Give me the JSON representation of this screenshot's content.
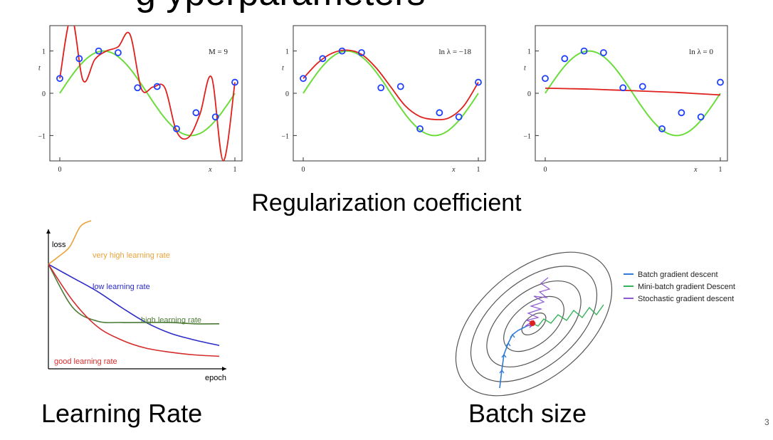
{
  "slide": {
    "title_fragment": "g          yperparameters",
    "regularization_caption": "Regularization coefficient",
    "lr_caption": "Learning Rate",
    "bs_caption": "Batch size",
    "page_number": "3"
  },
  "colors": {
    "data_points": "#1f3fff",
    "fit": "#e0201c",
    "truth": "#6cdc3c",
    "batch": "#2f7bd8",
    "minibatch": "#36b35a",
    "stochastic": "#8e5ad0"
  },
  "chart_data": [
    {
      "type": "line",
      "ylabel": "t",
      "xlabel": "x",
      "xlim": [
        0,
        1
      ],
      "ylim": [
        -1.6,
        1.6
      ],
      "x_ticks": [
        "0",
        "1"
      ],
      "y_ticks": [
        "1",
        "0",
        "−1"
      ],
      "annotation": "M = 9",
      "points_x": [
        0,
        0.111,
        0.222,
        0.333,
        0.444,
        0.556,
        0.667,
        0.778,
        0.889,
        1
      ],
      "points_t": [
        0.35,
        0.82,
        1.0,
        0.96,
        0.13,
        0.16,
        -0.84,
        -0.46,
        -0.56,
        0.26
      ],
      "fit_y": [
        0.35,
        1.8,
        0.3,
        0.8,
        1.0,
        1.1,
        1.4,
        0.1,
        0.15,
        0.13,
        -0.9,
        -1.05,
        -0.5,
        0.38,
        -1.6,
        0.26
      ]
    },
    {
      "type": "line",
      "ylabel": "t",
      "xlabel": "x",
      "xlim": [
        0,
        1
      ],
      "ylim": [
        -1.6,
        1.6
      ],
      "x_ticks": [
        "0",
        "1"
      ],
      "y_ticks": [
        "1",
        "0",
        "−1"
      ],
      "annotation": "ln λ = −18",
      "points_x": [
        0,
        0.111,
        0.222,
        0.333,
        0.444,
        0.556,
        0.667,
        0.778,
        0.889,
        1
      ],
      "points_t": [
        0.35,
        0.82,
        1.0,
        0.96,
        0.13,
        0.16,
        -0.84,
        -0.46,
        -0.56,
        0.26
      ],
      "fit_y": [
        0.35,
        0.72,
        0.95,
        1.02,
        0.92,
        0.6,
        0.15,
        -0.3,
        -0.55,
        -0.62,
        -0.58,
        -0.3,
        0.26
      ]
    },
    {
      "type": "line",
      "ylabel": "t",
      "xlabel": "x",
      "xlim": [
        0,
        1
      ],
      "ylim": [
        -1.6,
        1.6
      ],
      "x_ticks": [
        "0",
        "1"
      ],
      "y_ticks": [
        "1",
        "0",
        "−1"
      ],
      "annotation": "ln λ = 0",
      "points_x": [
        0,
        0.111,
        0.222,
        0.333,
        0.444,
        0.556,
        0.667,
        0.778,
        0.889,
        1
      ],
      "points_t": [
        0.35,
        0.82,
        1.0,
        0.96,
        0.13,
        0.16,
        -0.84,
        -0.46,
        -0.56,
        0.26
      ],
      "fit_y": [
        0.12,
        0.11,
        0.1,
        0.08,
        0.06,
        0.04,
        0.02,
        -0.01,
        -0.04
      ]
    },
    {
      "type": "line",
      "ylabel": "loss",
      "xlabel": "epoch",
      "series": [
        {
          "name": "very high learning rate",
          "color": "#e8a33c",
          "values": [
            0.72,
            0.78,
            0.85,
            1.0,
            1.25
          ]
        },
        {
          "name": "low learning rate",
          "color": "#2c2cc8",
          "values": [
            0.72,
            0.62,
            0.52,
            0.4,
            0.29,
            0.21,
            0.16,
            0.12
          ]
        },
        {
          "name": "high learning rate",
          "color": "#4a7a34",
          "values": [
            0.72,
            0.4,
            0.3,
            0.29,
            0.29,
            0.29,
            0.28,
            0.28
          ]
        },
        {
          "name": "good learning rate",
          "color": "#d42c2c",
          "values": [
            0.72,
            0.45,
            0.26,
            0.16,
            0.1,
            0.07,
            0.05,
            0.04
          ]
        }
      ]
    },
    {
      "type": "diagram",
      "legend": [
        {
          "name": "Batch gradient descent",
          "color": "#2f7bd8"
        },
        {
          "name": "Mini-batch gradient Descent",
          "color": "#36b35a"
        },
        {
          "name": "Stochastic gradient descent",
          "color": "#8e5ad0"
        }
      ],
      "legend_position": "top-right"
    }
  ]
}
